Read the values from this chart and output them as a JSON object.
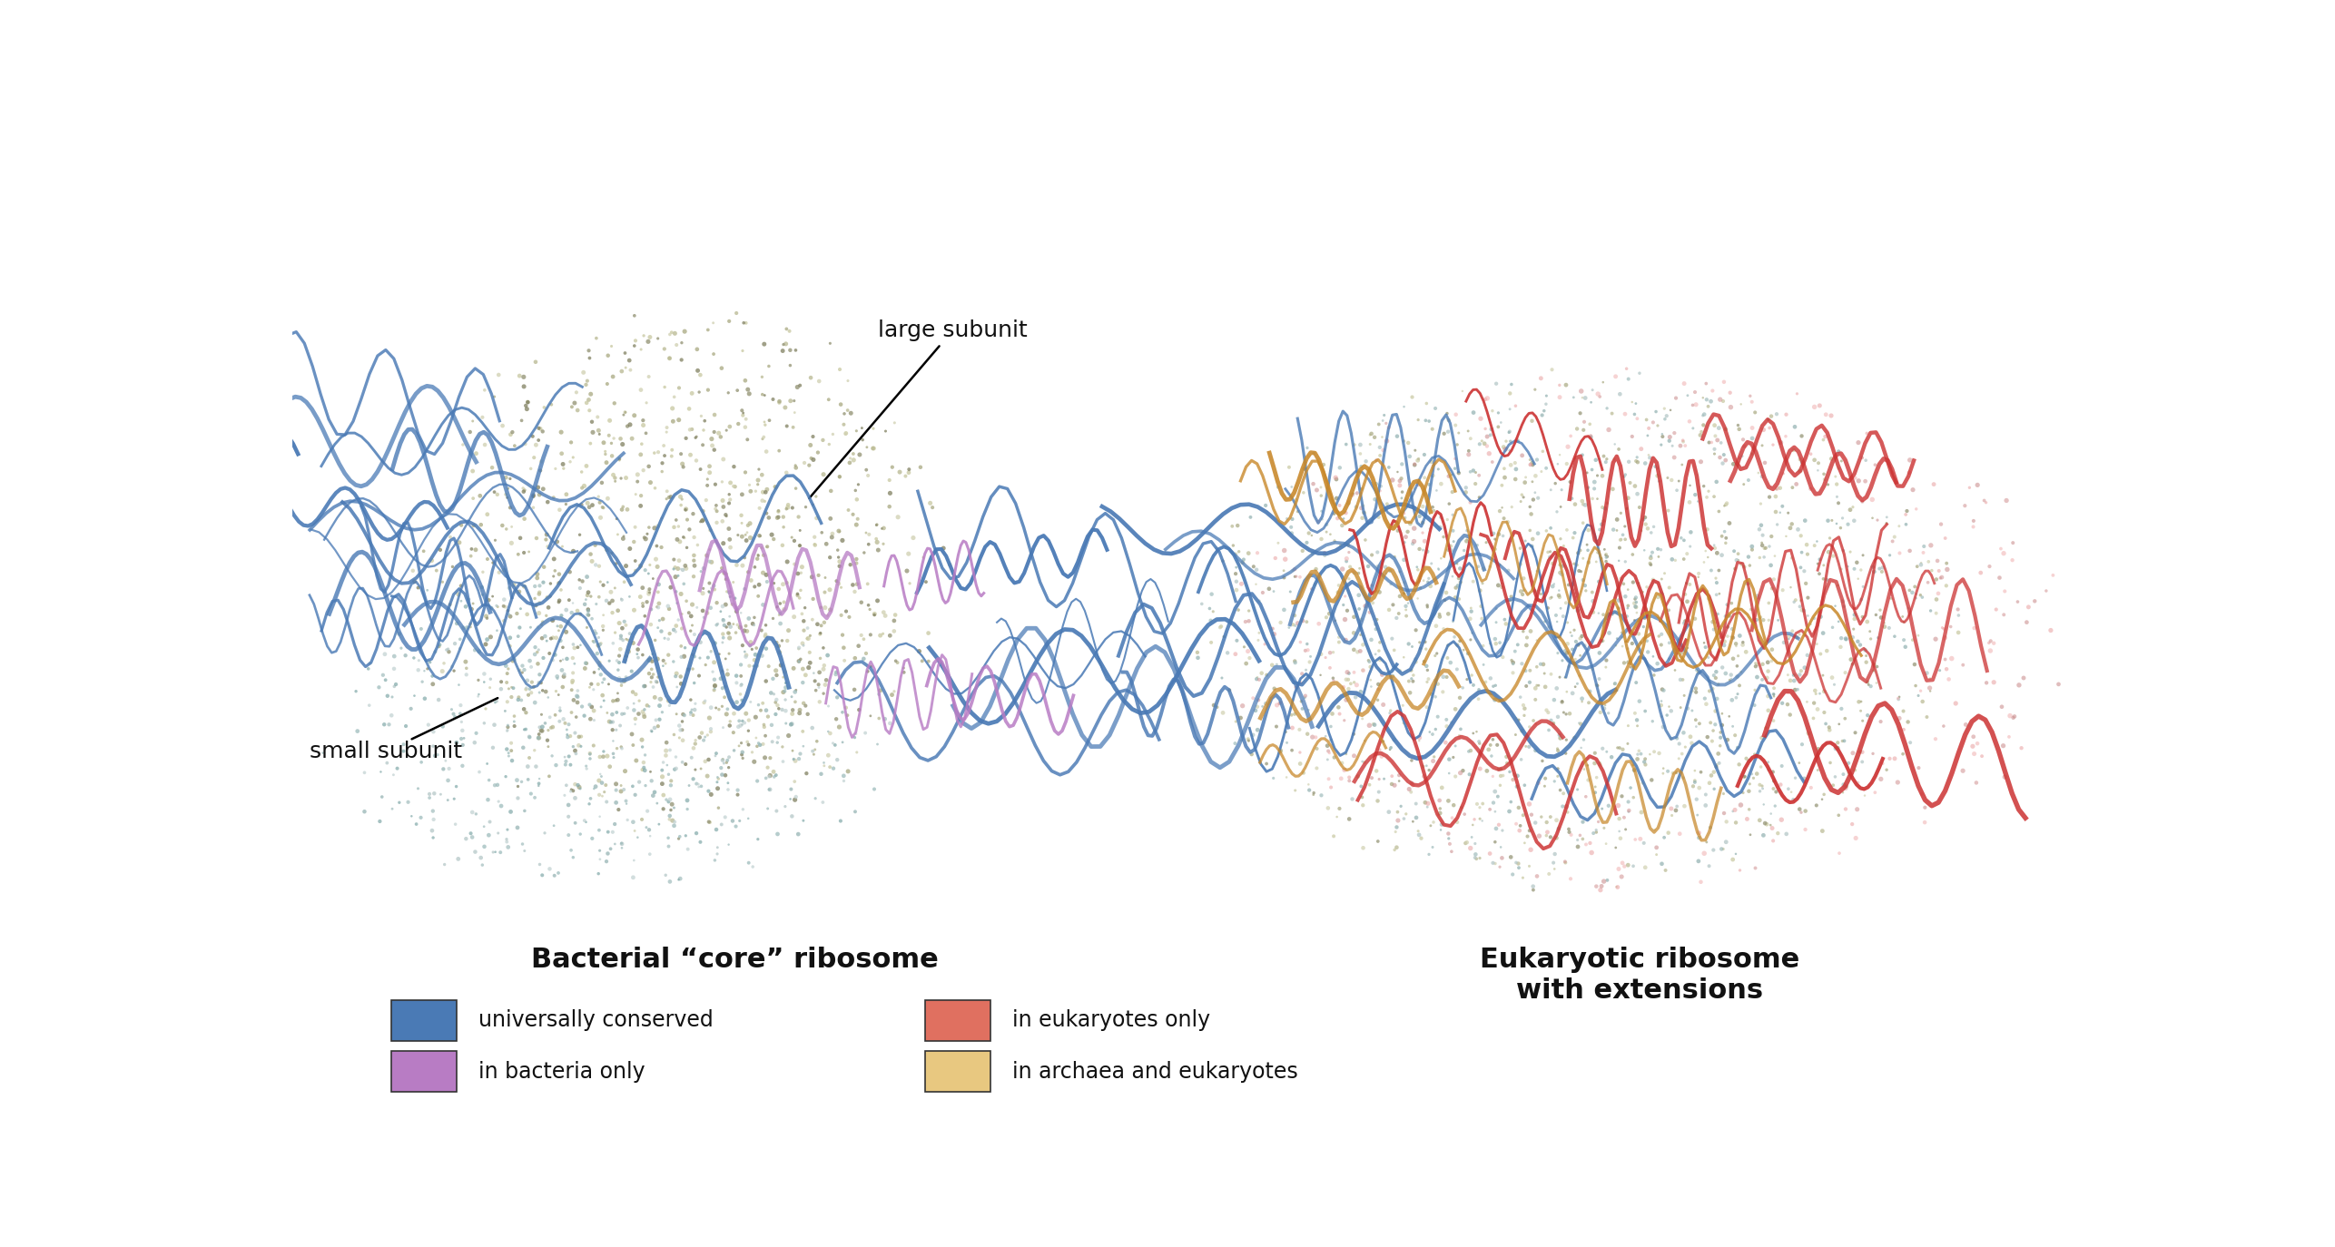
{
  "background_color": "#ffffff",
  "left_title": "Bacterial “core” ribosome",
  "right_title": "Eukaryotic ribosome\nwith extensions",
  "annotation_large_subunit": "large subunit",
  "annotation_small_subunit": "small subunit",
  "legend_items": [
    {
      "label": "universally conserved",
      "color": "#4a7ab5"
    },
    {
      "label": "in bacteria only",
      "color": "#b87cc4"
    },
    {
      "label": "in eukaryotes only",
      "color": "#e07060"
    },
    {
      "label": "in archaea and eukaryotes",
      "color": "#e8c880"
    }
  ],
  "title_fontsize": 22,
  "label_fontsize": 18,
  "legend_fontsize": 17
}
